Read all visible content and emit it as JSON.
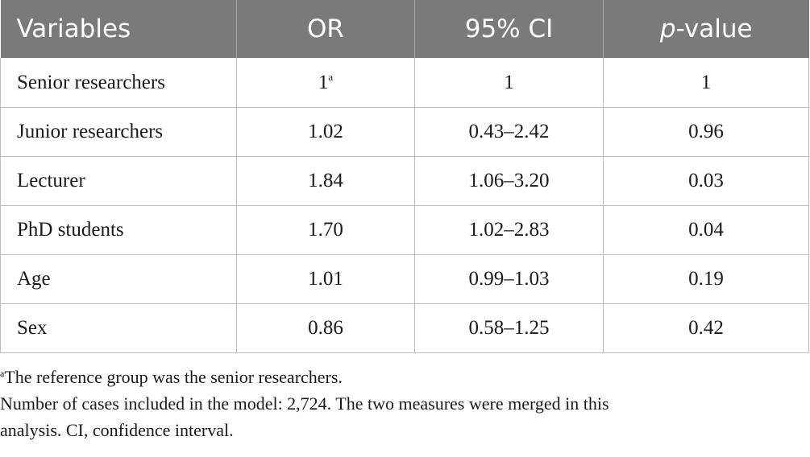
{
  "table": {
    "headers": {
      "variables": "Variables",
      "or": "OR",
      "ci": "95% CI",
      "p_italic": "p",
      "p_rest": "-value"
    },
    "rows": [
      {
        "variable": "Senior researchers",
        "or": "1",
        "or_sup": "a",
        "ci": "1",
        "p": "1"
      },
      {
        "variable": "Junior researchers",
        "or": "1.02",
        "or_sup": "",
        "ci": "0.43–2.42",
        "p": "0.96"
      },
      {
        "variable": "Lecturer",
        "or": "1.84",
        "or_sup": "",
        "ci": "1.06–3.20",
        "p": "0.03"
      },
      {
        "variable": "PhD students",
        "or": "1.70",
        "or_sup": "",
        "ci": "1.02–2.83",
        "p": "0.04"
      },
      {
        "variable": "Age",
        "or": "1.01",
        "or_sup": "",
        "ci": "0.99–1.03",
        "p": "0.19"
      },
      {
        "variable": "Sex",
        "or": "0.86",
        "or_sup": "",
        "ci": "0.58–1.25",
        "p": "0.42"
      }
    ]
  },
  "footnotes": {
    "note_a_marker": "a",
    "note_a_text": "The reference group was the senior researchers.",
    "note_b_line1": "Number of cases included in the model: 2,724. The two measures were merged in this",
    "note_b_line2": "analysis. CI, confidence interval."
  },
  "colors": {
    "header_bg": "#7a7a7a",
    "header_text": "#ffffff",
    "border": "#bdbdbd"
  }
}
